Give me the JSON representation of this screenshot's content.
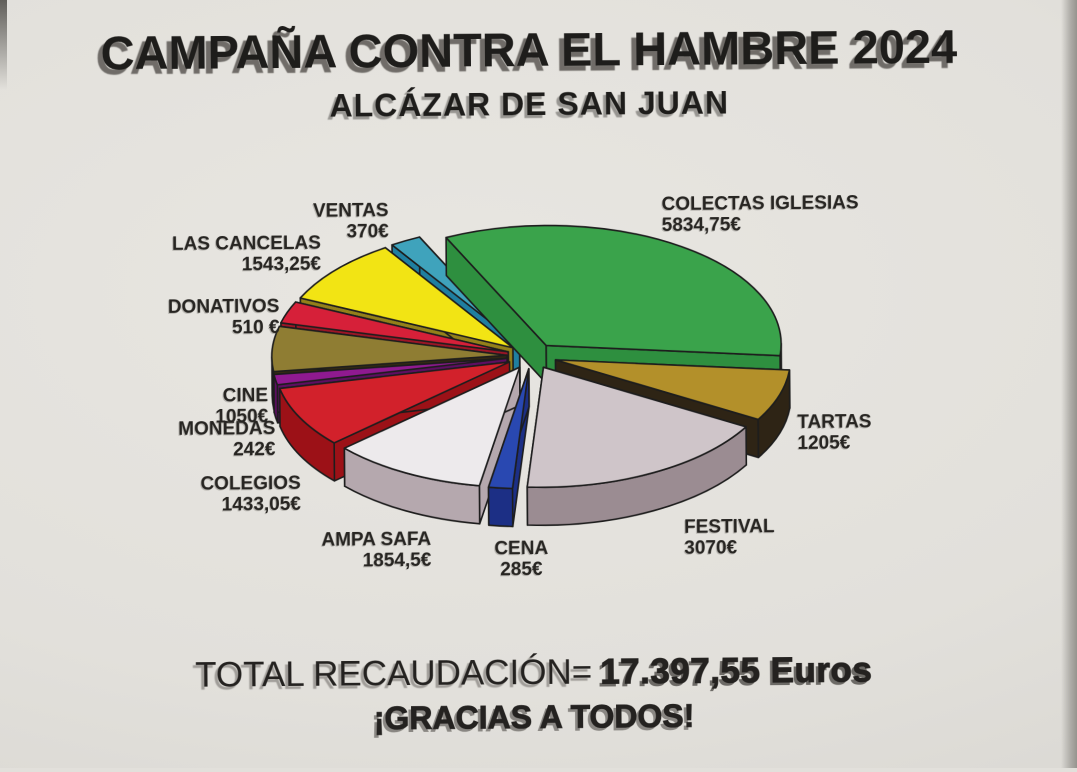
{
  "page": {
    "title": "CAMPAÑA CONTRA EL HAMBRE 2024",
    "subtitle": "ALCÁZAR DE SAN JUAN"
  },
  "totals": {
    "label": "TOTAL RECAUDACIÓN=",
    "value": "17.397,55 Euros",
    "thanks": "¡GRACIAS A TODOS!"
  },
  "chart_data": {
    "type": "pie",
    "style": "3d-exploded",
    "unit": "EUR",
    "total_value": 17397.55,
    "legend_position": "labels-around-slices",
    "slices": [
      {
        "id": "colectas-iglesias",
        "label": "COLECTAS IGLESIAS",
        "value": 5834.75,
        "value_label": "5834,75€",
        "color": "#3aa34b",
        "side": "#2e8f3f"
      },
      {
        "id": "tartas",
        "label": "TARTAS",
        "value": 1205,
        "value_label": "1205€",
        "color": "#b3902a",
        "side": "#2e2415"
      },
      {
        "id": "festival",
        "label": "FESTIVAL",
        "value": 3070,
        "value_label": "3070€",
        "color": "#cfc5c9",
        "side": "#9b8c92"
      },
      {
        "id": "cena",
        "label": "CENA",
        "value": 285,
        "value_label": "285€",
        "color": "#2948b1",
        "side": "#1c2f85"
      },
      {
        "id": "ampa-safa",
        "label": "AMPA SAFA",
        "value": 1854.5,
        "value_label": "1854,5€",
        "color": "#edeaec",
        "side": "#b5a8ae"
      },
      {
        "id": "colegios",
        "label": "COLEGIOS",
        "value": 1433.05,
        "value_label": "1433,05€",
        "color": "#d2212b",
        "side": "#9c1117"
      },
      {
        "id": "monedas",
        "label": "MONEDAS",
        "value": 242,
        "value_label": "242€",
        "color": "#8f1a90",
        "side": "#5e0e62"
      },
      {
        "id": "cine",
        "label": "CINE",
        "value": 1050,
        "value_label": "1050€",
        "color": "#8f7d33",
        "side": "#332a12"
      },
      {
        "id": "donativos",
        "label": "DONATIVOS",
        "value": 510,
        "value_label": "510 €",
        "color": "#d62039",
        "side": "#9e1526"
      },
      {
        "id": "las-cancelas",
        "label": "LAS CANCELAS",
        "value": 1543.25,
        "value_label": "1543,25€",
        "color": "#f2e414",
        "side": "#93801a"
      },
      {
        "id": "ventas",
        "label": "VENTAS",
        "value": 370,
        "value_label": "370€",
        "color": "#3fa3bc",
        "side": "#1f7fa0"
      }
    ]
  }
}
